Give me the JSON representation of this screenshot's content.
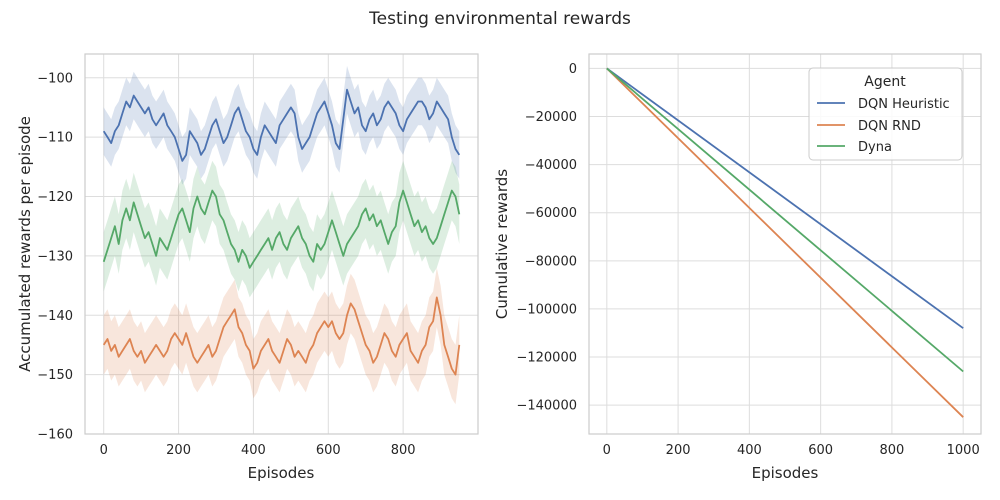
{
  "figure": {
    "title": "Testing environmental rewards"
  },
  "chart_data": [
    {
      "type": "line",
      "xlabel": "Episodes",
      "ylabel": "Accumulated rewards per episode",
      "xlim": [
        -50,
        1000
      ],
      "ylim": [
        -160,
        -96
      ],
      "xticks": [
        0,
        200,
        400,
        600,
        800
      ],
      "yticks": [
        -160,
        -150,
        -140,
        -130,
        -120,
        -110,
        -100
      ],
      "grid": true,
      "legend": false,
      "series": [
        {
          "color": "#4c72b0",
          "band": 4,
          "x": [
            0,
            10,
            20,
            30,
            40,
            50,
            60,
            70,
            80,
            90,
            100,
            110,
            120,
            130,
            140,
            150,
            160,
            170,
            180,
            190,
            200,
            210,
            220,
            230,
            240,
            250,
            260,
            270,
            280,
            290,
            300,
            310,
            320,
            330,
            340,
            350,
            360,
            370,
            380,
            390,
            400,
            410,
            420,
            430,
            440,
            450,
            460,
            470,
            480,
            490,
            500,
            510,
            520,
            530,
            540,
            550,
            560,
            570,
            580,
            590,
            600,
            610,
            620,
            630,
            640,
            650,
            660,
            670,
            680,
            690,
            700,
            710,
            720,
            730,
            740,
            750,
            760,
            770,
            780,
            790,
            800,
            810,
            820,
            830,
            840,
            850,
            860,
            870,
            880,
            890,
            900,
            910,
            920,
            930,
            940,
            950
          ],
          "y": [
            -109,
            -110,
            -111,
            -109,
            -108,
            -106,
            -104,
            -105,
            -103,
            -104,
            -105,
            -106,
            -105,
            -107,
            -108,
            -107,
            -106,
            -108,
            -109,
            -110,
            -112,
            -114,
            -113,
            -109,
            -110,
            -111,
            -113,
            -112,
            -110,
            -108,
            -107,
            -109,
            -111,
            -110,
            -108,
            -106,
            -105,
            -107,
            -109,
            -110,
            -112,
            -113,
            -110,
            -108,
            -109,
            -110,
            -111,
            -108,
            -107,
            -106,
            -105,
            -106,
            -110,
            -112,
            -111,
            -110,
            -108,
            -106,
            -105,
            -104,
            -106,
            -108,
            -111,
            -112,
            -107,
            -102,
            -104,
            -106,
            -105,
            -108,
            -109,
            -107,
            -106,
            -108,
            -107,
            -105,
            -104,
            -105,
            -106,
            -108,
            -109,
            -107,
            -106,
            -105,
            -104,
            -104,
            -105,
            -107,
            -106,
            -104,
            -105,
            -106,
            -107,
            -110,
            -112,
            -113
          ]
        },
        {
          "color": "#dd8452",
          "band": 5,
          "x": [
            0,
            10,
            20,
            30,
            40,
            50,
            60,
            70,
            80,
            90,
            100,
            110,
            120,
            130,
            140,
            150,
            160,
            170,
            180,
            190,
            200,
            210,
            220,
            230,
            240,
            250,
            260,
            270,
            280,
            290,
            300,
            310,
            320,
            330,
            340,
            350,
            360,
            370,
            380,
            390,
            400,
            410,
            420,
            430,
            440,
            450,
            460,
            470,
            480,
            490,
            500,
            510,
            520,
            530,
            540,
            550,
            560,
            570,
            580,
            590,
            600,
            610,
            620,
            630,
            640,
            650,
            660,
            670,
            680,
            690,
            700,
            710,
            720,
            730,
            740,
            750,
            760,
            770,
            780,
            790,
            800,
            810,
            820,
            830,
            840,
            850,
            860,
            870,
            880,
            890,
            900,
            910,
            920,
            930,
            940,
            950
          ],
          "y": [
            -145,
            -144,
            -146,
            -145,
            -147,
            -146,
            -145,
            -144,
            -146,
            -147,
            -146,
            -148,
            -147,
            -146,
            -145,
            -146,
            -147,
            -146,
            -144,
            -143,
            -144,
            -145,
            -143,
            -145,
            -147,
            -148,
            -147,
            -146,
            -145,
            -147,
            -146,
            -144,
            -142,
            -141,
            -140,
            -139,
            -142,
            -143,
            -145,
            -146,
            -149,
            -148,
            -146,
            -145,
            -144,
            -146,
            -147,
            -148,
            -146,
            -144,
            -145,
            -147,
            -146,
            -147,
            -148,
            -146,
            -145,
            -143,
            -142,
            -141,
            -142,
            -141,
            -143,
            -144,
            -143,
            -140,
            -138,
            -139,
            -141,
            -143,
            -145,
            -146,
            -148,
            -147,
            -145,
            -143,
            -144,
            -146,
            -147,
            -145,
            -144,
            -143,
            -146,
            -147,
            -148,
            -146,
            -145,
            -142,
            -141,
            -137,
            -140,
            -145,
            -147,
            -149,
            -150,
            -145
          ]
        },
        {
          "color": "#55a868",
          "band": 5,
          "x": [
            0,
            10,
            20,
            30,
            40,
            50,
            60,
            70,
            80,
            90,
            100,
            110,
            120,
            130,
            140,
            150,
            160,
            170,
            180,
            190,
            200,
            210,
            220,
            230,
            240,
            250,
            260,
            270,
            280,
            290,
            300,
            310,
            320,
            330,
            340,
            350,
            360,
            370,
            380,
            390,
            400,
            410,
            420,
            430,
            440,
            450,
            460,
            470,
            480,
            490,
            500,
            510,
            520,
            530,
            540,
            550,
            560,
            570,
            580,
            590,
            600,
            610,
            620,
            630,
            640,
            650,
            660,
            670,
            680,
            690,
            700,
            710,
            720,
            730,
            740,
            750,
            760,
            770,
            780,
            790,
            800,
            810,
            820,
            830,
            840,
            850,
            860,
            870,
            880,
            890,
            900,
            910,
            920,
            930,
            940,
            950
          ],
          "y": [
            -131,
            -129,
            -127,
            -125,
            -128,
            -124,
            -122,
            -124,
            -121,
            -123,
            -125,
            -127,
            -126,
            -128,
            -130,
            -127,
            -128,
            -129,
            -127,
            -125,
            -123,
            -122,
            -124,
            -126,
            -122,
            -120,
            -122,
            -123,
            -121,
            -119,
            -120,
            -123,
            -124,
            -126,
            -128,
            -129,
            -131,
            -129,
            -130,
            -132,
            -131,
            -130,
            -129,
            -128,
            -127,
            -129,
            -127,
            -126,
            -128,
            -129,
            -127,
            -126,
            -125,
            -127,
            -128,
            -130,
            -131,
            -128,
            -129,
            -128,
            -126,
            -124,
            -126,
            -128,
            -130,
            -128,
            -127,
            -126,
            -125,
            -123,
            -122,
            -124,
            -123,
            -125,
            -124,
            -126,
            -128,
            -126,
            -125,
            -121,
            -119,
            -121,
            -123,
            -125,
            -124,
            -126,
            -125,
            -127,
            -128,
            -127,
            -125,
            -123,
            -121,
            -119,
            -120,
            -123
          ]
        }
      ]
    },
    {
      "type": "line",
      "xlabel": "Episodes",
      "ylabel": "Cumulative rewards",
      "xlim": [
        -50,
        1050
      ],
      "ylim": [
        -152000,
        6000
      ],
      "xticks": [
        0,
        200,
        400,
        600,
        800,
        1000
      ],
      "yticks": [
        0,
        -20000,
        -40000,
        -60000,
        -80000,
        -100000,
        -120000,
        -140000
      ],
      "grid": true,
      "legend": {
        "title": "Agent",
        "position": "top-right",
        "entries": [
          "DQN Heuristic",
          "DQN RND",
          "Dyna"
        ]
      },
      "series": [
        {
          "name": "DQN Heuristic",
          "color": "#4c72b0",
          "x": [
            0,
            1000
          ],
          "y": [
            0,
            -108000
          ]
        },
        {
          "name": "DQN RND",
          "color": "#dd8452",
          "x": [
            0,
            1000
          ],
          "y": [
            0,
            -145000
          ]
        },
        {
          "name": "Dyna",
          "color": "#55a868",
          "x": [
            0,
            1000
          ],
          "y": [
            0,
            -126000
          ]
        }
      ]
    }
  ]
}
